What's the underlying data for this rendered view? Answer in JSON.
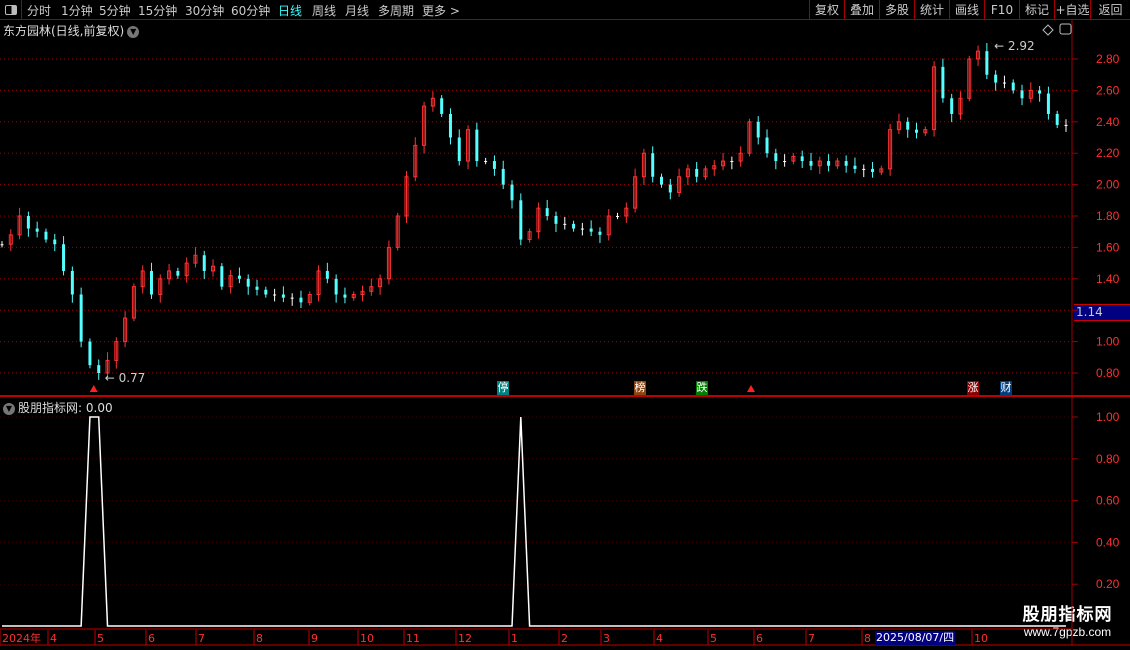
{
  "toolbar": {
    "periods": [
      "分时",
      "1分钟",
      "5分钟",
      "15分钟",
      "30分钟",
      "60分钟",
      "日线",
      "周线",
      "月线",
      "多周期",
      "更多 >"
    ],
    "active_period": "日线",
    "right_buttons": [
      "复权",
      "叠加",
      "多股",
      "统计",
      "画线",
      "F10",
      "标记",
      "+自选",
      "返回"
    ]
  },
  "header": {
    "title": "东方园林(日线,前复权)"
  },
  "indicator": {
    "title": "股朋指标网",
    "value_label": ": 0.00"
  },
  "current_price_label": "1.14",
  "markers": [
    {
      "text": "停",
      "color": "#008080"
    },
    {
      "text": "榜",
      "color": "#8b4513"
    },
    {
      "text": "跌",
      "color": "#008000"
    },
    {
      "text": "涨",
      "color": "#8b0000"
    },
    {
      "text": "财",
      "color": "#003f7f"
    }
  ],
  "watermark": {
    "line1": "股朋指标网",
    "line2": "www.7gpzb.com"
  },
  "colors": {
    "up": "#ff3232",
    "down": "#54ffff",
    "flat": "#ffffff",
    "grid": "#a00000",
    "axis": "#ff3030"
  },
  "chart_data": [
    {
      "type": "candlestick",
      "price_axis": {
        "ticks": [
          "2.80",
          "2.60",
          "2.40",
          "2.20",
          "2.00",
          "1.80",
          "1.60",
          "1.40",
          "1.20",
          "1.00",
          "0.80"
        ],
        "ylim": [
          0.72,
          2.96
        ]
      },
      "max_label": "2.92",
      "min_label": "0.77",
      "x_ticks": [
        "2024年",
        "4",
        "5",
        "6",
        "7",
        "8",
        "9",
        "10",
        "11",
        "12",
        "1",
        "2",
        "3",
        "4",
        "5",
        "6",
        "7",
        "8",
        "2025/08/07/四",
        "10"
      ],
      "close": [
        1.62,
        1.68,
        1.8,
        1.72,
        1.7,
        1.65,
        1.62,
        1.45,
        1.3,
        1.0,
        0.85,
        0.8,
        0.88,
        1.0,
        1.15,
        1.35,
        1.45,
        1.3,
        1.4,
        1.45,
        1.42,
        1.5,
        1.55,
        1.45,
        1.48,
        1.35,
        1.42,
        1.4,
        1.35,
        1.33,
        1.3,
        1.3,
        1.28,
        1.28,
        1.25,
        1.3,
        1.45,
        1.4,
        1.3,
        1.28,
        1.3,
        1.32,
        1.35,
        1.4,
        1.6,
        1.8,
        2.05,
        2.25,
        2.5,
        2.55,
        2.45,
        2.3,
        2.15,
        2.35,
        2.15,
        2.15,
        2.1,
        2.0,
        1.9,
        1.65,
        1.7,
        1.85,
        1.8,
        1.75,
        1.75,
        1.72,
        1.72,
        1.7,
        1.68,
        1.8,
        1.8,
        1.85,
        2.05,
        2.2,
        2.05,
        2.0,
        1.95,
        2.05,
        2.1,
        2.05,
        2.1,
        2.12,
        2.15,
        2.15,
        2.2,
        2.4,
        2.3,
        2.2,
        2.15,
        2.15,
        2.18,
        2.15,
        2.12,
        2.15,
        2.12,
        2.15,
        2.12,
        2.1,
        2.1,
        2.08,
        2.1,
        2.35,
        2.4,
        2.35,
        2.33,
        2.35,
        2.75,
        2.55,
        2.45,
        2.55,
        2.8,
        2.85,
        2.7,
        2.65,
        2.65,
        2.6,
        2.55,
        2.6,
        2.58,
        2.45,
        2.38,
        2.38
      ]
    },
    {
      "type": "line",
      "name": "股朋指标网",
      "y_ticks": [
        "1.00",
        "0.80",
        "0.60",
        "0.40",
        "0.20"
      ],
      "ylim": [
        0,
        1.05
      ],
      "signal_indices": [
        10,
        11,
        59
      ]
    }
  ]
}
